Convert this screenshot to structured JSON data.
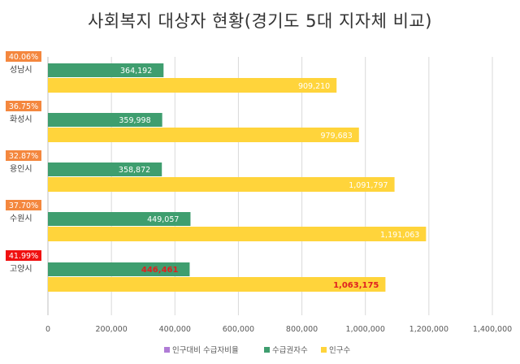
{
  "chart_data": {
    "type": "bar",
    "orientation": "horizontal",
    "title": "사회복지 대상자 현황(경기도 5대 지자체 비교)",
    "categories": [
      "성남시",
      "화성시",
      "용인시",
      "수원시",
      "고양시"
    ],
    "series": [
      {
        "name": "인구대비 수급자비율",
        "color": "#b07cd6",
        "values": [
          40.06,
          36.75,
          32.87,
          37.7,
          41.99
        ],
        "labels": [
          "40.06%",
          "36.75%",
          "32.87%",
          "37.70%",
          "41.99%"
        ],
        "label_colors": [
          "#f4873e",
          "#f4873e",
          "#f4873e",
          "#f4873e",
          "#f01010"
        ]
      },
      {
        "name": "수급권자수",
        "color": "#3f9e6f",
        "values": [
          364192,
          359998,
          358872,
          449057,
          446461
        ],
        "labels": [
          "364,192",
          "359,998",
          "358,872",
          "449,057",
          "446,461"
        ]
      },
      {
        "name": "인구수",
        "color": "#ffd43b",
        "values": [
          909210,
          979683,
          1091797,
          1191063,
          1063175
        ],
        "labels": [
          "909,210",
          "979,683",
          "1,091,797",
          "1,191,063",
          "1,063,175"
        ]
      }
    ],
    "highlight_category": "고양시",
    "xlim": [
      0,
      1400000
    ],
    "x_ticks": [
      0,
      200000,
      400000,
      600000,
      800000,
      1000000,
      1200000,
      1400000
    ],
    "x_tick_labels": [
      "0",
      "200,000",
      "400,000",
      "600,000",
      "800,000",
      "1,000,000",
      "1,200,000",
      "1,400,000"
    ],
    "grid": true,
    "legend_position": "bottom"
  }
}
